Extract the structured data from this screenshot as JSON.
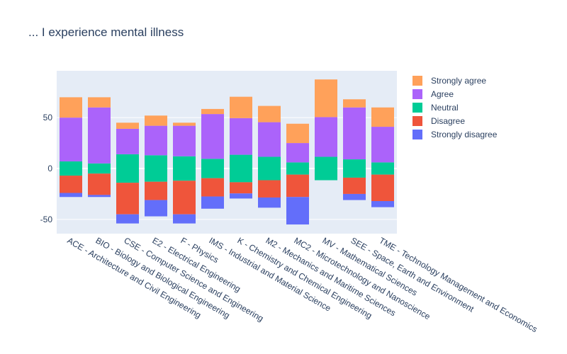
{
  "chart_data": {
    "type": "bar",
    "barmode": "diverging-stacked",
    "title": "... I experience mental illness",
    "xlabel": "",
    "ylabel": "",
    "ylim": [
      -64,
      96
    ],
    "yticks": [
      -50,
      0,
      50
    ],
    "grid": true,
    "legend_position": "right",
    "categories": [
      "ACE - Architecture and Civil Engineering",
      "BIO - Biology and Biological Engineering",
      "CSE - Computer Science and Engineering",
      "E2 - Electrical Engineering",
      "F - Physics",
      "IMS - Industrial and Material Science",
      "K - Chemistry and Chemical Engineering",
      "M2 - Mechanics and Maritime Sciences",
      "MC2 - Microtechnology and Nanoscience",
      "MV - Mathematical Sciences",
      "SEE - Space, Earth and Environment",
      "TME - Technology Management and Economics"
    ],
    "series": [
      {
        "name": "Strongly agree",
        "color": "#ffa15a",
        "values": [
          20,
          10,
          6,
          10,
          3,
          5,
          21,
          16,
          19,
          37,
          8,
          19
        ]
      },
      {
        "name": "Agree",
        "color": "#ab63fa",
        "values": [
          43,
          55,
          25,
          29,
          30,
          44,
          36,
          34,
          19,
          39,
          51,
          35
        ]
      },
      {
        "name": "Neutral",
        "color": "#00cc96",
        "values": [
          14,
          10,
          28,
          26,
          24,
          19,
          27,
          23,
          12,
          23,
          18,
          12
        ]
      },
      {
        "name": "Disagree",
        "color": "#ef553b",
        "values": [
          17,
          21,
          31,
          18,
          33,
          18,
          11,
          17,
          22,
          0,
          16,
          26
        ]
      },
      {
        "name": "Strongly disagree",
        "color": "#636efa",
        "values": [
          4,
          2,
          9,
          16,
          9,
          12,
          5,
          10,
          27,
          0,
          6,
          6
        ]
      }
    ]
  }
}
